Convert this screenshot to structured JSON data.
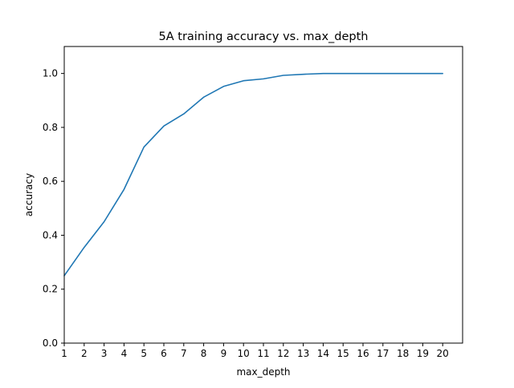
{
  "chart_data": {
    "type": "line",
    "title": "5A training accuracy vs. max_depth",
    "xlabel": "max_depth",
    "ylabel": "accuracy",
    "xlim": [
      1,
      21
    ],
    "ylim": [
      0,
      1.1
    ],
    "xticks": [
      1,
      2,
      3,
      4,
      5,
      6,
      7,
      8,
      9,
      10,
      11,
      12,
      13,
      14,
      15,
      16,
      17,
      18,
      19,
      20
    ],
    "yticks": [
      "0.0",
      "0.2",
      "0.4",
      "0.6",
      "0.8",
      "1.0"
    ],
    "grid": false,
    "series": [
      {
        "color": "#1f77b4",
        "x": [
          1,
          2,
          3,
          4,
          5,
          6,
          7,
          8,
          9,
          10,
          11,
          12,
          13,
          14,
          15,
          16,
          17,
          18,
          19,
          20
        ],
        "y": [
          0.25,
          0.355,
          0.45,
          0.57,
          0.727,
          0.805,
          0.85,
          0.912,
          0.952,
          0.973,
          0.98,
          0.993,
          0.997,
          1.0,
          1.0,
          1.0,
          1.0,
          1.0,
          1.0,
          1.0
        ]
      }
    ]
  }
}
